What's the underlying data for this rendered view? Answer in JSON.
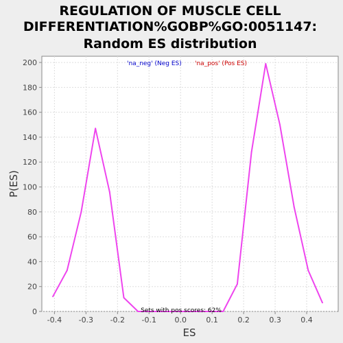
{
  "chart_data": {
    "type": "line",
    "title_lines": [
      "REGULATION OF MUSCLE CELL",
      "DIFFERENTIATION%GOBP%GO:0051147:",
      "Random ES distribution"
    ],
    "xlabel": "ES",
    "ylabel": "P(ES)",
    "xlim": [
      -0.44,
      0.5
    ],
    "ylim": [
      0,
      205
    ],
    "xticks": [
      -0.4,
      -0.3,
      -0.2,
      -0.1,
      0.0,
      0.1,
      0.2,
      0.3,
      0.4
    ],
    "xtick_labels": [
      "-0.4",
      "-0.3",
      "-0.2",
      "-0.1",
      "0.0",
      "0.1",
      "0.2",
      "0.3",
      "0.4"
    ],
    "yticks": [
      0,
      20,
      40,
      60,
      80,
      100,
      120,
      140,
      160,
      180,
      200
    ],
    "ytick_labels": [
      "0",
      "20",
      "40",
      "60",
      "80",
      "100",
      "120",
      "140",
      "160",
      "180",
      "200"
    ],
    "grid": true,
    "legend": [
      {
        "name": "'na_neg' (Neg ES)",
        "color": "#0000cc"
      },
      {
        "name": "'na_pos' (Pos ES)",
        "color": "#cc0000"
      }
    ],
    "annotation": "Sets with pos scores: 62%",
    "series": [
      {
        "name": "Random ES distribution",
        "color": "#ee44ee",
        "x": [
          -0.405,
          -0.36,
          -0.315,
          -0.27,
          -0.225,
          -0.18,
          -0.135,
          -0.09,
          -0.045,
          0.0,
          0.045,
          0.09,
          0.135,
          0.18,
          0.225,
          0.27,
          0.315,
          0.36,
          0.405,
          0.45
        ],
        "y": [
          12,
          33,
          80,
          147,
          96,
          11,
          0,
          0,
          0,
          0,
          0,
          0,
          0,
          22,
          128,
          199,
          150,
          84,
          33,
          7
        ]
      }
    ]
  }
}
